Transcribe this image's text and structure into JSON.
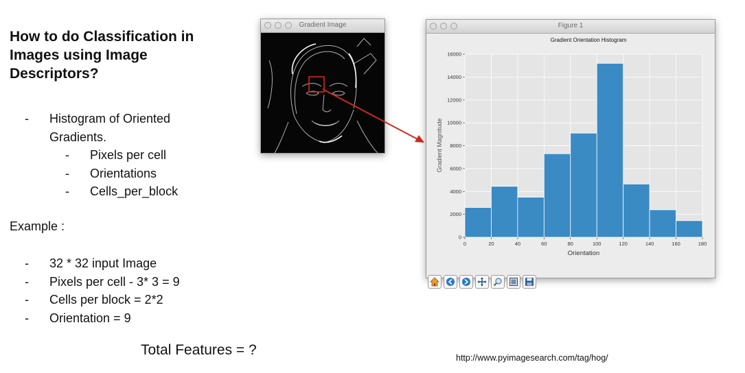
{
  "slide": {
    "title": "How to do Classification in Images using Image Descriptors?",
    "bullets": [
      "Histogram of Oriented Gradients.",
      "Pixels per cell",
      "Orientations",
      "Cells_per_block"
    ],
    "dash": "-",
    "example_label": "Example :",
    "example_items": [
      "32 * 32 input Image",
      "Pixels per cell - 3* 3 = 9",
      "Cells per block = 2*2",
      "Orientation = 9"
    ],
    "total": "Total Features = ?",
    "source": "http://www.pyimagesearch.com/tag/hog/"
  },
  "gradient_window": {
    "title": "Gradient Image"
  },
  "figure_window": {
    "title": "Figure 1",
    "toolbar_icons": [
      "home-icon",
      "back-arrow-icon",
      "forward-arrow-icon",
      "pan-icon",
      "zoom-icon",
      "subplots-config-icon",
      "save-icon"
    ]
  },
  "colors": {
    "bar": "#3a8ac4",
    "plot_bg": "#e5e5e5",
    "arrow": "#cc2a1e"
  },
  "chart_data": {
    "type": "bar",
    "title": "Gradient Orientation Histogram",
    "xlabel": "Orientation",
    "ylabel": "Gradient Magnitude",
    "bins": [
      [
        0,
        20
      ],
      [
        20,
        40
      ],
      [
        40,
        60
      ],
      [
        60,
        80
      ],
      [
        80,
        100
      ],
      [
        100,
        120
      ],
      [
        120,
        140
      ],
      [
        140,
        160
      ],
      [
        160,
        180
      ]
    ],
    "values": [
      2600,
      4450,
      3500,
      7300,
      9100,
      15200,
      4650,
      2400,
      1450
    ],
    "xlim": [
      0,
      180
    ],
    "ylim": [
      0,
      16000
    ],
    "xticks": [
      0,
      20,
      40,
      60,
      80,
      100,
      120,
      140,
      160,
      180
    ],
    "yticks": [
      0,
      2000,
      4000,
      6000,
      8000,
      10000,
      12000,
      14000,
      16000
    ],
    "grid": true
  }
}
